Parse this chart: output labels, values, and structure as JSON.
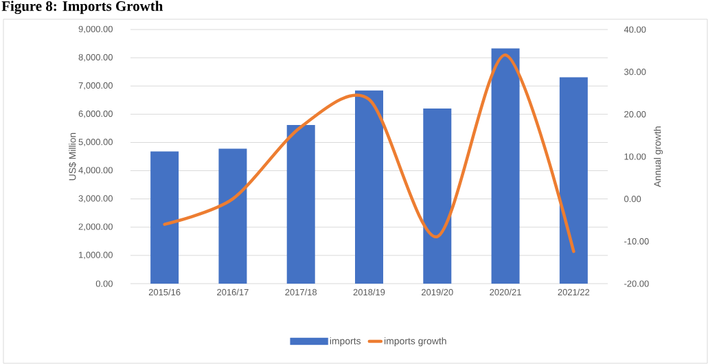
{
  "chart_data": {
    "type": "bar",
    "title": "Figure 8: Imports Growth",
    "ylabel": "US$ Million",
    "y2label": "Annual growth",
    "categories": [
      "2015/16",
      "2016/17",
      "2017/18",
      "2018/19",
      "2019/20",
      "2020/21",
      "2021/22"
    ],
    "series": [
      {
        "name": "imports",
        "color": "#4472c4",
        "values": [
          4680,
          4780,
          5620,
          6840,
          6200,
          8330,
          7310
        ]
      },
      {
        "name": "imports growth",
        "type": "line",
        "axis": "y2",
        "color": "#ed7d31",
        "values": [
          -6.0,
          0.0,
          17.0,
          23.5,
          -8.9,
          34.0,
          -12.4
        ]
      }
    ],
    "ylim": [
      0,
      9000
    ],
    "yticks": [
      {
        "value": 0,
        "label": "0.00"
      },
      {
        "value": 1000,
        "label": "1,000.00"
      },
      {
        "value": 2000,
        "label": "2,000.00"
      },
      {
        "value": 3000,
        "label": "3,000.00"
      },
      {
        "value": 4000,
        "label": "4,000.00"
      },
      {
        "value": 5000,
        "label": "5,000.00"
      },
      {
        "value": 6000,
        "label": "6,000.00"
      },
      {
        "value": 7000,
        "label": "7,000.00"
      },
      {
        "value": 8000,
        "label": "8,000.00"
      },
      {
        "value": 9000,
        "label": "9,000.00"
      }
    ],
    "y2lim": [
      -20,
      40
    ],
    "y2ticks": [
      {
        "value": -20,
        "label": "-20.00"
      },
      {
        "value": -10,
        "label": "-10.00"
      },
      {
        "value": 0,
        "label": "0.00"
      },
      {
        "value": 10,
        "label": "10.00"
      },
      {
        "value": 20,
        "label": "20.00"
      },
      {
        "value": 30,
        "label": "30.00"
      },
      {
        "value": 40,
        "label": "40.00"
      }
    ],
    "grid": "y",
    "legend": "bottom"
  }
}
